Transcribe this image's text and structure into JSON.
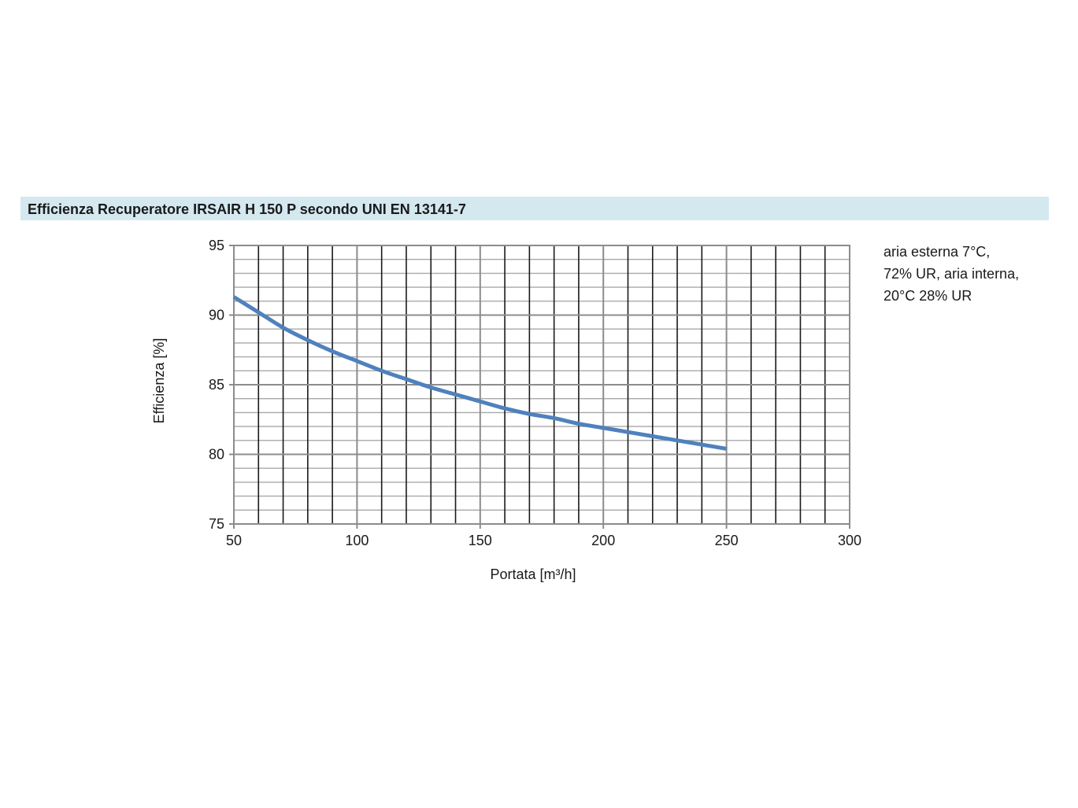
{
  "chart_data": {
    "type": "line",
    "title": "Efficienza Recuperatore IRSAIR H 150 P secondo UNI EN 13141-7",
    "xlabel": "Portata [m³/h]",
    "ylabel": "Efficienza [%]",
    "xlim": [
      50,
      300
    ],
    "ylim": [
      75,
      95
    ],
    "x_ticks": [
      "50",
      "100",
      "150",
      "200",
      "250",
      "300"
    ],
    "y_ticks": [
      "95",
      "90",
      "85",
      "80",
      "75"
    ],
    "grid": true,
    "legend": "none",
    "annotation": [
      "aria esterna 7°C,",
      "72% UR, aria interna,",
      "20°C 28% UR"
    ],
    "series": [
      {
        "color": "#4f81bd",
        "x": [
          50,
          60,
          70,
          80,
          90,
          100,
          110,
          120,
          130,
          140,
          150,
          160,
          170,
          180,
          190,
          200,
          210,
          220,
          230,
          240,
          250
        ],
        "values": [
          91.3,
          90.2,
          89.1,
          88.2,
          87.4,
          86.7,
          86.0,
          85.4,
          84.8,
          84.3,
          83.8,
          83.3,
          82.9,
          82.6,
          82.2,
          81.9,
          81.6,
          81.3,
          81.0,
          80.7,
          80.4
        ]
      }
    ]
  }
}
